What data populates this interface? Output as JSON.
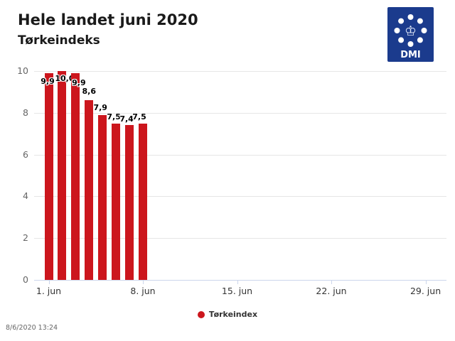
{
  "header": {
    "title": "Hele landet juni 2020",
    "subtitle": "Tørkeindeks"
  },
  "logo": {
    "label": "DMI",
    "bg_color": "#1b3b8d",
    "crown_icon": "crown-icon"
  },
  "chart_data": {
    "type": "bar",
    "title": "Hele landet juni 2020",
    "subtitle": "Tørkeindeks",
    "series": [
      {
        "name": "Tørkeindex",
        "color": "#cc161d",
        "x_days": [
          1,
          2,
          3,
          4,
          5,
          6,
          7,
          8
        ],
        "values": [
          9.9,
          10.0,
          9.9,
          8.6,
          7.9,
          7.5,
          7.4,
          7.5
        ],
        "data_labels": [
          "9,9",
          "10,0",
          "9,9",
          "8,6",
          "7,9",
          "7,5",
          "7,4",
          "7,5"
        ]
      }
    ],
    "xlabel": "",
    "ylabel": "",
    "ylim": [
      0,
      10
    ],
    "y_ticks": [
      0,
      2,
      4,
      6,
      8,
      10
    ],
    "x_ticks": [
      {
        "day": 1,
        "label": "1. jun"
      },
      {
        "day": 8,
        "label": "8. jun"
      },
      {
        "day": 15,
        "label": "15. jun"
      },
      {
        "day": 22,
        "label": "22. jun"
      },
      {
        "day": 29,
        "label": "29. jun"
      }
    ],
    "grid": true,
    "grid_color": "#e6e6e6",
    "axis_color": "#ccd6eb",
    "legend_position": "bottom-center"
  },
  "legend": {
    "marker": "circle",
    "marker_color": "#cc161d",
    "label": "Tørkeindex"
  },
  "footer": {
    "timestamp": "8/6/2020 13:24"
  }
}
